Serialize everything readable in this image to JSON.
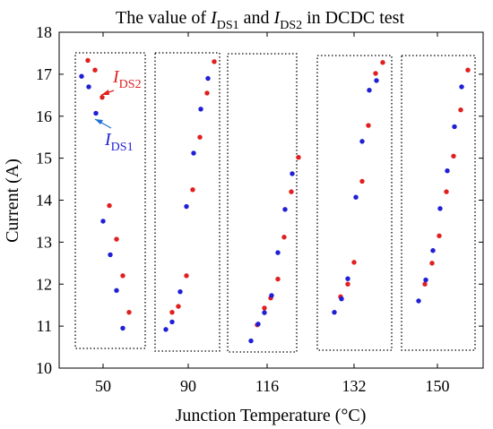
{
  "chart_data": {
    "type": "scatter",
    "title_parts": {
      "prefix": "The value of ",
      "var1_main": "I",
      "var1_sub": "DS1",
      "mid": " and ",
      "var2_main": "I",
      "var2_sub": "DS2",
      "suffix": "  in DCDC test"
    },
    "xlabel": "Junction Temperature (°C)",
    "ylabel": "Current (A)",
    "ylim": [
      10,
      18
    ],
    "yticks": [
      10,
      11,
      12,
      13,
      14,
      15,
      16,
      17,
      18
    ],
    "xtick_labels": [
      "50",
      "90",
      "116",
      "132",
      "150"
    ],
    "grid": false,
    "legend": "none",
    "colors": {
      "DS1": "#1f1fd6",
      "DS2": "#e01f1f"
    },
    "annotations": [
      {
        "target": "DS2",
        "main": "I",
        "sub": "DS2",
        "color": "#e01f1f"
      },
      {
        "target": "DS1",
        "main": "I",
        "sub": "DS1",
        "color": "#1f6fd6"
      }
    ],
    "groups": [
      {
        "temperature_label": "50",
        "DS1": [
          [
            1,
            16.95
          ],
          [
            2,
            16.7
          ],
          [
            3,
            16.07
          ],
          [
            4,
            13.5
          ],
          [
            5,
            12.7
          ],
          [
            6,
            11.85
          ],
          [
            7,
            10.95
          ]
        ],
        "DS2": [
          [
            1,
            17.33
          ],
          [
            2,
            17.1
          ],
          [
            3,
            16.45
          ],
          [
            4,
            13.87
          ],
          [
            5,
            13.07
          ],
          [
            6,
            12.2
          ],
          [
            7,
            11.33
          ]
        ]
      },
      {
        "temperature_label": "90",
        "DS1": [
          [
            1,
            10.92
          ],
          [
            2,
            11.1
          ],
          [
            3,
            11.82
          ],
          [
            4,
            13.85
          ],
          [
            5,
            15.12
          ],
          [
            6,
            16.17
          ],
          [
            7,
            16.9
          ]
        ],
        "DS2": [
          [
            1,
            11.33
          ],
          [
            2,
            11.47
          ],
          [
            3,
            12.2
          ],
          [
            4,
            14.25
          ],
          [
            5,
            15.5
          ],
          [
            6,
            16.55
          ],
          [
            7,
            17.3
          ]
        ]
      },
      {
        "temperature_label": "116",
        "DS1": [
          [
            1,
            10.65
          ],
          [
            2,
            11.05
          ],
          [
            3,
            11.32
          ],
          [
            4,
            11.73
          ],
          [
            5,
            12.75
          ],
          [
            6,
            13.78
          ],
          [
            7,
            14.63
          ]
        ],
        "DS2": [
          [
            1,
            11.03
          ],
          [
            2,
            11.43
          ],
          [
            3,
            11.67
          ],
          [
            4,
            12.12
          ],
          [
            5,
            13.12
          ],
          [
            6,
            14.2
          ],
          [
            7,
            15.02
          ]
        ]
      },
      {
        "temperature_label": "132",
        "DS1": [
          [
            1,
            11.33
          ],
          [
            2,
            11.65
          ],
          [
            3,
            12.13
          ],
          [
            4,
            14.07
          ],
          [
            5,
            15.4
          ],
          [
            6,
            16.62
          ],
          [
            7,
            16.85
          ]
        ],
        "DS2": [
          [
            1,
            11.7
          ],
          [
            2,
            12.0
          ],
          [
            3,
            12.52
          ],
          [
            4,
            14.45
          ],
          [
            5,
            15.78
          ],
          [
            6,
            17.02
          ],
          [
            7,
            17.28
          ]
        ]
      },
      {
        "temperature_label": "150",
        "DS1": [
          [
            1,
            11.6
          ],
          [
            2,
            12.1
          ],
          [
            3,
            12.8
          ],
          [
            4,
            13.8
          ],
          [
            5,
            14.7
          ],
          [
            6,
            15.75
          ],
          [
            7,
            16.7
          ]
        ],
        "DS2": [
          [
            1,
            12.0
          ],
          [
            2,
            12.5
          ],
          [
            3,
            13.15
          ],
          [
            4,
            14.2
          ],
          [
            5,
            15.05
          ],
          [
            6,
            16.15
          ],
          [
            7,
            17.1
          ]
        ]
      }
    ]
  }
}
